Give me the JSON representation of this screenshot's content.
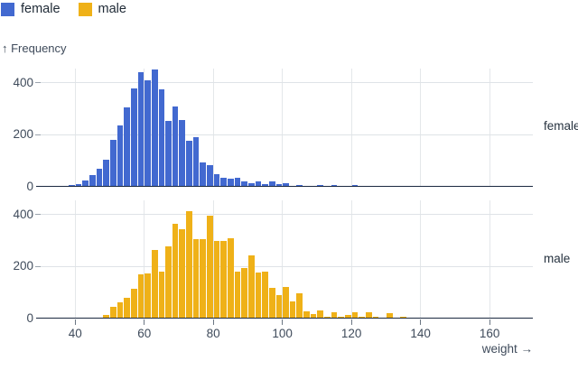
{
  "chart_data": {
    "type": "bar",
    "subtype": "faceted-histogram",
    "y_axis_label": "↑ Frequency",
    "x_axis_label": "weight →",
    "xlabel": "weight",
    "ylabel": "Frequency",
    "bin_width": 2,
    "xlim": [
      30,
      172
    ],
    "ylim": [
      0,
      455
    ],
    "x_ticks": [
      40,
      60,
      80,
      100,
      120,
      140,
      160
    ],
    "y_ticks": [
      0,
      200,
      400
    ],
    "grid": true,
    "legend_position": "top-left",
    "legend": [
      {
        "label": "female",
        "color": "#4269d0"
      },
      {
        "label": "male",
        "color": "#efb118"
      }
    ],
    "facets": [
      {
        "label": "female",
        "color": "#4269d0",
        "bins": [
          [
            30,
            2
          ],
          [
            32,
            4
          ],
          [
            34,
            5
          ],
          [
            36,
            5
          ],
          [
            38,
            6
          ],
          [
            40,
            12
          ],
          [
            42,
            25
          ],
          [
            44,
            45
          ],
          [
            46,
            70
          ],
          [
            48,
            105
          ],
          [
            50,
            180
          ],
          [
            52,
            235
          ],
          [
            54,
            305
          ],
          [
            56,
            380
          ],
          [
            58,
            440
          ],
          [
            60,
            410
          ],
          [
            62,
            452
          ],
          [
            64,
            375
          ],
          [
            66,
            252
          ],
          [
            68,
            310
          ],
          [
            70,
            258
          ],
          [
            72,
            178
          ],
          [
            74,
            192
          ],
          [
            76,
            95
          ],
          [
            78,
            82
          ],
          [
            80,
            48
          ],
          [
            82,
            33
          ],
          [
            84,
            30
          ],
          [
            86,
            33
          ],
          [
            88,
            22
          ],
          [
            90,
            15
          ],
          [
            92,
            20
          ],
          [
            94,
            12
          ],
          [
            96,
            22
          ],
          [
            98,
            9
          ],
          [
            100,
            15
          ],
          [
            102,
            5
          ],
          [
            104,
            7
          ],
          [
            110,
            8
          ],
          [
            114,
            6
          ],
          [
            120,
            7
          ],
          [
            126,
            3
          ]
        ]
      },
      {
        "label": "male",
        "color": "#efb118",
        "bins": [
          [
            44,
            2
          ],
          [
            46,
            5
          ],
          [
            48,
            14
          ],
          [
            50,
            45
          ],
          [
            52,
            64
          ],
          [
            54,
            81
          ],
          [
            56,
            115
          ],
          [
            58,
            171
          ],
          [
            60,
            172
          ],
          [
            62,
            264
          ],
          [
            64,
            180
          ],
          [
            66,
            277
          ],
          [
            68,
            363
          ],
          [
            70,
            344
          ],
          [
            72,
            412
          ],
          [
            74,
            306
          ],
          [
            76,
            306
          ],
          [
            78,
            397
          ],
          [
            80,
            300
          ],
          [
            82,
            298
          ],
          [
            84,
            310
          ],
          [
            86,
            180
          ],
          [
            88,
            195
          ],
          [
            90,
            243
          ],
          [
            92,
            178
          ],
          [
            94,
            182
          ],
          [
            96,
            117
          ],
          [
            98,
            92
          ],
          [
            100,
            123
          ],
          [
            102,
            66
          ],
          [
            104,
            97
          ],
          [
            106,
            29
          ],
          [
            108,
            18
          ],
          [
            110,
            32
          ],
          [
            112,
            7
          ],
          [
            114,
            26
          ],
          [
            116,
            6
          ],
          [
            118,
            13
          ],
          [
            120,
            25
          ],
          [
            122,
            7
          ],
          [
            124,
            23
          ],
          [
            126,
            7
          ],
          [
            130,
            21
          ],
          [
            134,
            6
          ],
          [
            136,
            4
          ],
          [
            138,
            4
          ],
          [
            140,
            4
          ],
          [
            146,
            5
          ],
          [
            150,
            3
          ],
          [
            156,
            2
          ]
        ]
      }
    ],
    "colors": {
      "grid": "#e4e7ea",
      "baseline": "#1b2940",
      "tick_text": "#3f4b5b",
      "legend_text": "#1f2a36"
    }
  }
}
